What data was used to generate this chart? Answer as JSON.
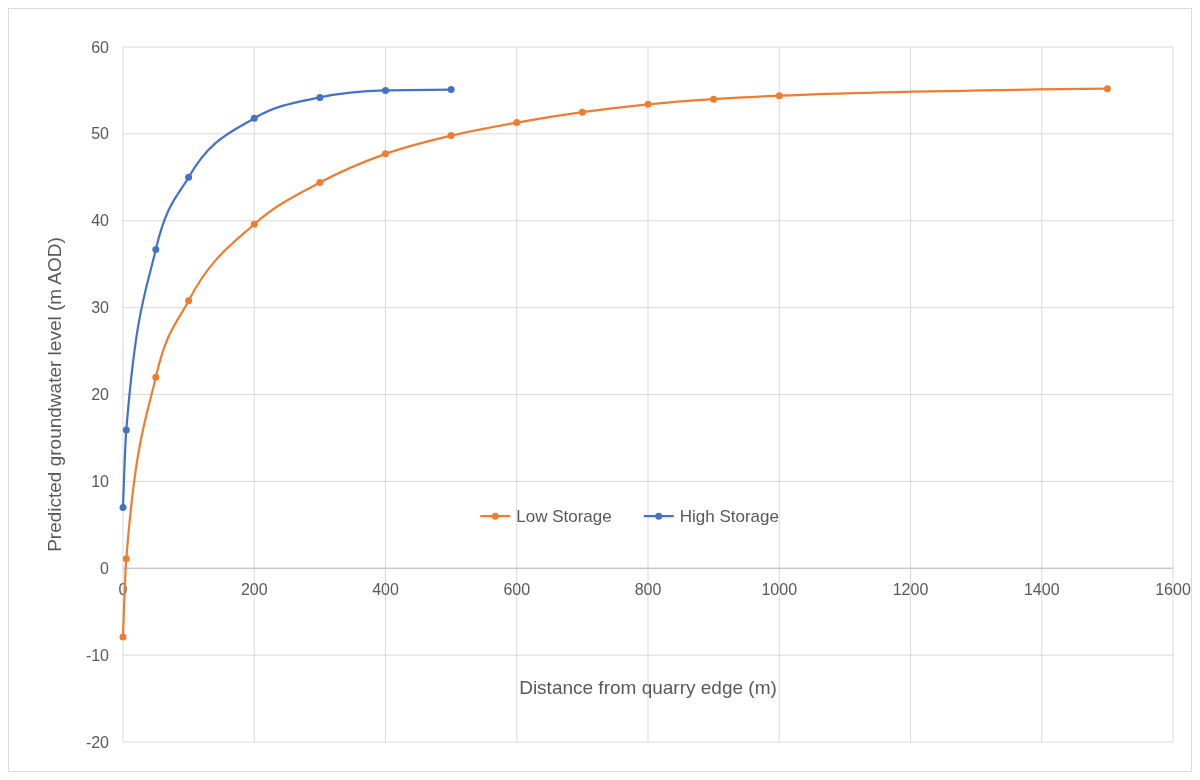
{
  "chart_data": {
    "type": "line",
    "xlabel": "Distance from quarry edge (m)",
    "ylabel": "Predicted groundwater level (m AOD)",
    "xlim": [
      0,
      1600
    ],
    "xticks": [
      0,
      200,
      400,
      600,
      800,
      1000,
      1200,
      1400,
      1600
    ],
    "ylim": [
      -20,
      60
    ],
    "yticks": [
      -20,
      -10,
      0,
      10,
      20,
      30,
      40,
      50,
      60
    ],
    "grid": true,
    "legend": "center",
    "marker": "circle",
    "line_style": "solid",
    "series": [
      {
        "name": "Low Storage",
        "color": "#ed7d31",
        "x": [
          0,
          5,
          50,
          100,
          200,
          300,
          400,
          500,
          600,
          700,
          800,
          900,
          1000,
          1500
        ],
        "values": [
          -7.9,
          1.1,
          22,
          30.8,
          39.6,
          44.4,
          47.7,
          49.8,
          51.3,
          52.5,
          53.4,
          54,
          54.4,
          55.2
        ]
      },
      {
        "name": "High Storage",
        "color": "#4472c4",
        "x": [
          0,
          5,
          50,
          100,
          200,
          300,
          400,
          500
        ],
        "values": [
          7,
          15.9,
          36.7,
          45,
          51.8,
          54.2,
          55,
          55.1
        ]
      }
    ]
  }
}
